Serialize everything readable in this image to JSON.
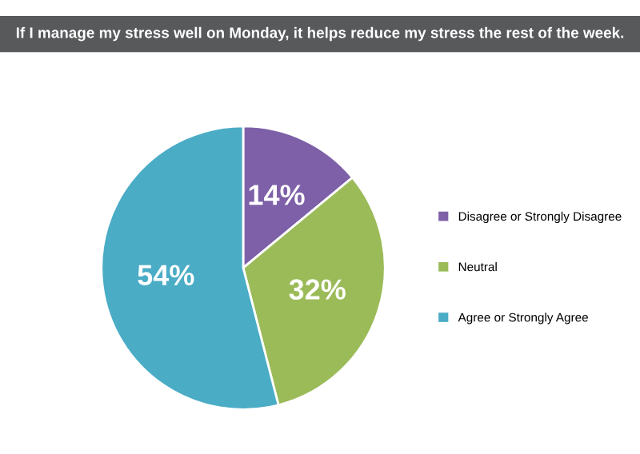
{
  "chart_data": {
    "type": "pie",
    "title": "If I manage my stress well on Monday, it helps reduce my stress the rest of the week.",
    "categories": [
      "Disagree or Strongly Disagree",
      "Neutral",
      "Agree or Strongly Agree"
    ],
    "values": [
      14,
      32,
      54
    ],
    "colors": [
      "#7d60a8",
      "#9bbb59",
      "#4bacc6"
    ],
    "value_labels": [
      "14%",
      "32%",
      "54%"
    ],
    "legend": "right"
  }
}
